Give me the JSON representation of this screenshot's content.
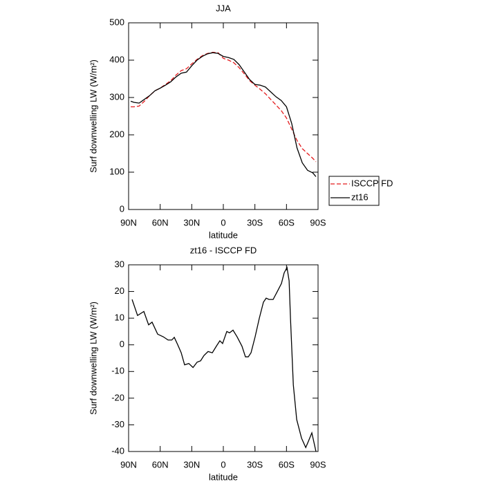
{
  "chart_data": [
    {
      "type": "line",
      "title": "JJA",
      "xlabel": "latitude",
      "ylabel": "Surf downwelling LW (W/m²)",
      "x": [
        88,
        85,
        80,
        75,
        70,
        65,
        60,
        55,
        50,
        45,
        40,
        35,
        30,
        25,
        20,
        15,
        10,
        5,
        0,
        -5,
        -10,
        -15,
        -20,
        -25,
        -30,
        -35,
        -40,
        -45,
        -50,
        -55,
        -60,
        -65,
        -70,
        -75,
        -80,
        -85,
        -88
      ],
      "series": [
        {
          "name": "ISCCP FD",
          "color": "#e41a1c",
          "linestyle": "dashed",
          "values": [
            275,
            275,
            277,
            290,
            305,
            318,
            325,
            335,
            345,
            360,
            372,
            377,
            390,
            402,
            412,
            418,
            421,
            420,
            405,
            400,
            393,
            380,
            363,
            345,
            333,
            322,
            310,
            295,
            280,
            265,
            245,
            215,
            185,
            163,
            150,
            137,
            128
          ]
        },
        {
          "name": "zt16",
          "color": "#000000",
          "linestyle": "solid",
          "values": [
            290,
            287,
            285,
            295,
            305,
            318,
            325,
            333,
            342,
            355,
            365,
            368,
            385,
            400,
            410,
            417,
            420,
            418,
            410,
            407,
            402,
            388,
            368,
            348,
            335,
            333,
            328,
            315,
            302,
            292,
            275,
            230,
            165,
            125,
            105,
            98,
            88
          ]
        }
      ],
      "xlim": [
        90,
        -90
      ],
      "ylim": [
        0,
        500
      ],
      "xticks": [
        {
          "value": 90,
          "label": "90N"
        },
        {
          "value": 60,
          "label": "60N"
        },
        {
          "value": 30,
          "label": "30N"
        },
        0,
        {
          "value": -30,
          "label": "30S"
        },
        {
          "value": -60,
          "label": "60S"
        },
        {
          "value": -90,
          "label": "90S"
        }
      ],
      "yticks": [
        0,
        100,
        200,
        300,
        400,
        500
      ],
      "legend": "right"
    },
    {
      "type": "line",
      "title": "zt16 - ISCCP FD",
      "xlabel": "latitude",
      "ylabel": "Surf downwelling LW (W/m²)",
      "x": [
        86.7,
        81.5,
        75.5,
        71,
        67.7,
        62.4,
        57,
        52.5,
        49,
        46.6,
        43.3,
        40,
        36.8,
        32.8,
        28.8,
        24.9,
        21.6,
        18.4,
        14.5,
        10.5,
        6.6,
        3.3,
        0.7,
        -3.3,
        -5.9,
        -9.2,
        -13.1,
        -17.7,
        -21,
        -23.7,
        -26.3,
        -30.2,
        -34.2,
        -38.1,
        -40.7,
        -43.4,
        -47.3,
        -51.3,
        -55.2,
        -57.8,
        -60.5,
        -62.5,
        -63.8,
        -66.5,
        -69.7,
        -74.3,
        -78.3,
        -81,
        -84.1,
        -88
      ],
      "series": [
        {
          "color": "#000000",
          "linestyle": "solid",
          "values": [
            17,
            11,
            12.5,
            7.5,
            8.5,
            4,
            3,
            1.8,
            1.8,
            2.8,
            0,
            -3,
            -7.5,
            -7,
            -8.5,
            -6.5,
            -6,
            -4,
            -2.5,
            -3,
            -0.5,
            1.5,
            0.5,
            5,
            4.5,
            5.5,
            3,
            -0.5,
            -4.5,
            -4.5,
            -3,
            3,
            10,
            16,
            17.5,
            17,
            17,
            20,
            23,
            27,
            29,
            24,
            10,
            -15,
            -28,
            -35,
            -38.5,
            -36,
            -33,
            -40
          ]
        }
      ],
      "xlim": [
        90,
        -90
      ],
      "ylim": [
        -40,
        30
      ],
      "xticks": [
        {
          "value": 90,
          "label": "90N"
        },
        {
          "value": 60,
          "label": "60N"
        },
        {
          "value": 30,
          "label": "30N"
        },
        0,
        {
          "value": -30,
          "label": "30S"
        },
        {
          "value": -60,
          "label": "60S"
        },
        {
          "value": -90,
          "label": "90S"
        }
      ],
      "yticks": [
        -40,
        -30,
        -20,
        -10,
        0,
        10,
        20,
        30
      ]
    }
  ]
}
